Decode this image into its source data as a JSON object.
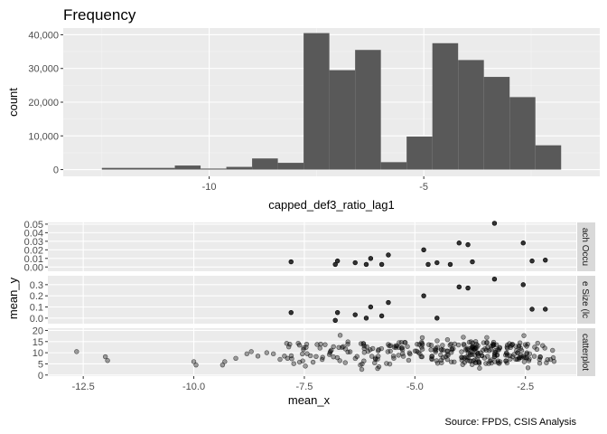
{
  "chart_data": [
    {
      "type": "bar",
      "subtype": "histogram",
      "title": "Frequency",
      "xlabel": "capped_def3_ratio_lag1",
      "ylabel": "count",
      "xlim": [
        -13.4,
        -0.9
      ],
      "ylim": [
        -2000,
        42000
      ],
      "x_ticks": [
        -10,
        -5
      ],
      "x_tick_labels": [
        "-10",
        "-5"
      ],
      "y_ticks": [
        0,
        10000,
        20000,
        30000,
        40000
      ],
      "y_tick_labels": [
        "0",
        "10,000",
        "20,000",
        "30,000",
        "40,000"
      ],
      "bins": [
        {
          "x0": -12.5,
          "x1": -10.8,
          "count": 500
        },
        {
          "x0": -10.8,
          "x1": -10.2,
          "count": 1200
        },
        {
          "x0": -10.2,
          "x1": -9.6,
          "count": 300
        },
        {
          "x0": -9.6,
          "x1": -9.0,
          "count": 800
        },
        {
          "x0": -9.0,
          "x1": -8.4,
          "count": 3300
        },
        {
          "x0": -8.4,
          "x1": -7.8,
          "count": 2000
        },
        {
          "x0": -7.8,
          "x1": -7.2,
          "count": 40500
        },
        {
          "x0": -7.2,
          "x1": -6.6,
          "count": 29500
        },
        {
          "x0": -6.6,
          "x1": -6.0,
          "count": 35500
        },
        {
          "x0": -6.0,
          "x1": -5.4,
          "count": 2200
        },
        {
          "x0": -5.4,
          "x1": -4.8,
          "count": 9800
        },
        {
          "x0": -4.8,
          "x1": -4.2,
          "count": 37500
        },
        {
          "x0": -4.2,
          "x1": -3.6,
          "count": 32500
        },
        {
          "x0": -3.6,
          "x1": -3.0,
          "count": 27500
        },
        {
          "x0": -3.0,
          "x1": -2.4,
          "count": 21500
        },
        {
          "x0": -2.4,
          "x1": -1.8,
          "count": 7200
        }
      ]
    },
    {
      "type": "scatter",
      "xlabel": "mean_x",
      "ylabel": "mean_y",
      "xlim": [
        -13.3,
        -1.35
      ],
      "x_ticks": [
        -12.5,
        -10,
        -7.5,
        -5,
        -2.5
      ],
      "x_tick_labels": [
        "-12.5",
        "-10.0",
        "-7.5",
        "-5.0",
        "-2.5"
      ],
      "facets": [
        {
          "strip_label": "ach Occu",
          "ylim": [
            -0.005,
            0.052
          ],
          "y_ticks": [
            0,
            0.01,
            0.02,
            0.03,
            0.04,
            0.05
          ],
          "y_tick_labels": [
            "0.00",
            "0.01",
            "0.02",
            "0.03",
            "0.04",
            "0.05"
          ],
          "points": [
            [
              -7.8,
              0.006
            ],
            [
              -6.8,
              0.003
            ],
            [
              -6.75,
              0.007
            ],
            [
              -6.35,
              0.005
            ],
            [
              -6.1,
              0.003
            ],
            [
              -6.0,
              0.01
            ],
            [
              -5.75,
              0.003
            ],
            [
              -5.6,
              0.014
            ],
            [
              -4.8,
              0.02
            ],
            [
              -4.7,
              0.003
            ],
            [
              -4.5,
              0.005
            ],
            [
              -4.2,
              0.003
            ],
            [
              -4.0,
              0.028
            ],
            [
              -3.8,
              0.026
            ],
            [
              -3.7,
              0.006
            ],
            [
              -3.2,
              0.051
            ],
            [
              -2.55,
              0.028
            ],
            [
              -2.35,
              0.007
            ],
            [
              -2.05,
              0.008
            ]
          ]
        },
        {
          "strip_label": "e Size (lc",
          "ylim": [
            -0.05,
            0.38
          ],
          "y_ticks": [
            0,
            0.1,
            0.2,
            0.3
          ],
          "y_tick_labels": [
            "0.0",
            "0.1",
            "0.2",
            "0.3"
          ],
          "points": [
            [
              -7.8,
              0.05
            ],
            [
              -6.8,
              -0.02
            ],
            [
              -6.75,
              0.05
            ],
            [
              -6.35,
              0.03
            ],
            [
              -6.1,
              0.0
            ],
            [
              -6.0,
              0.1
            ],
            [
              -5.75,
              0.02
            ],
            [
              -5.6,
              0.14
            ],
            [
              -4.8,
              0.2
            ],
            [
              -4.5,
              0.0
            ],
            [
              -4.0,
              0.28
            ],
            [
              -3.8,
              0.27
            ],
            [
              -3.2,
              0.35
            ],
            [
              -2.55,
              0.3
            ],
            [
              -2.35,
              0.08
            ],
            [
              -2.05,
              0.08
            ]
          ]
        },
        {
          "strip_label": "catterplot",
          "ylim": [
            -0.5,
            21
          ],
          "y_ticks": [
            0,
            5,
            10,
            15,
            20
          ],
          "y_tick_labels": [
            "0",
            "5",
            "10",
            "15",
            "20"
          ],
          "point_style": "dense, semi-transparent",
          "points": [
            [
              -12.65,
              10.5
            ],
            [
              -12.0,
              8.2
            ],
            [
              -11.95,
              6.5
            ],
            [
              -10.0,
              6.0
            ],
            [
              -9.95,
              4.5
            ],
            [
              -9.35,
              4.5
            ],
            [
              -9.3,
              6.0
            ],
            [
              -9.05,
              7.5
            ],
            [
              -8.8,
              9.5
            ],
            [
              -8.7,
              10.5
            ],
            [
              -8.55,
              8.5
            ],
            [
              -8.35,
              10.0
            ],
            [
              -8.2,
              9.5
            ],
            [
              -8.05,
              7.0
            ],
            [
              -7.95,
              8.5
            ]
          ]
        }
      ]
    }
  ],
  "caption": "Source: FPDS, CSIS Analysis"
}
